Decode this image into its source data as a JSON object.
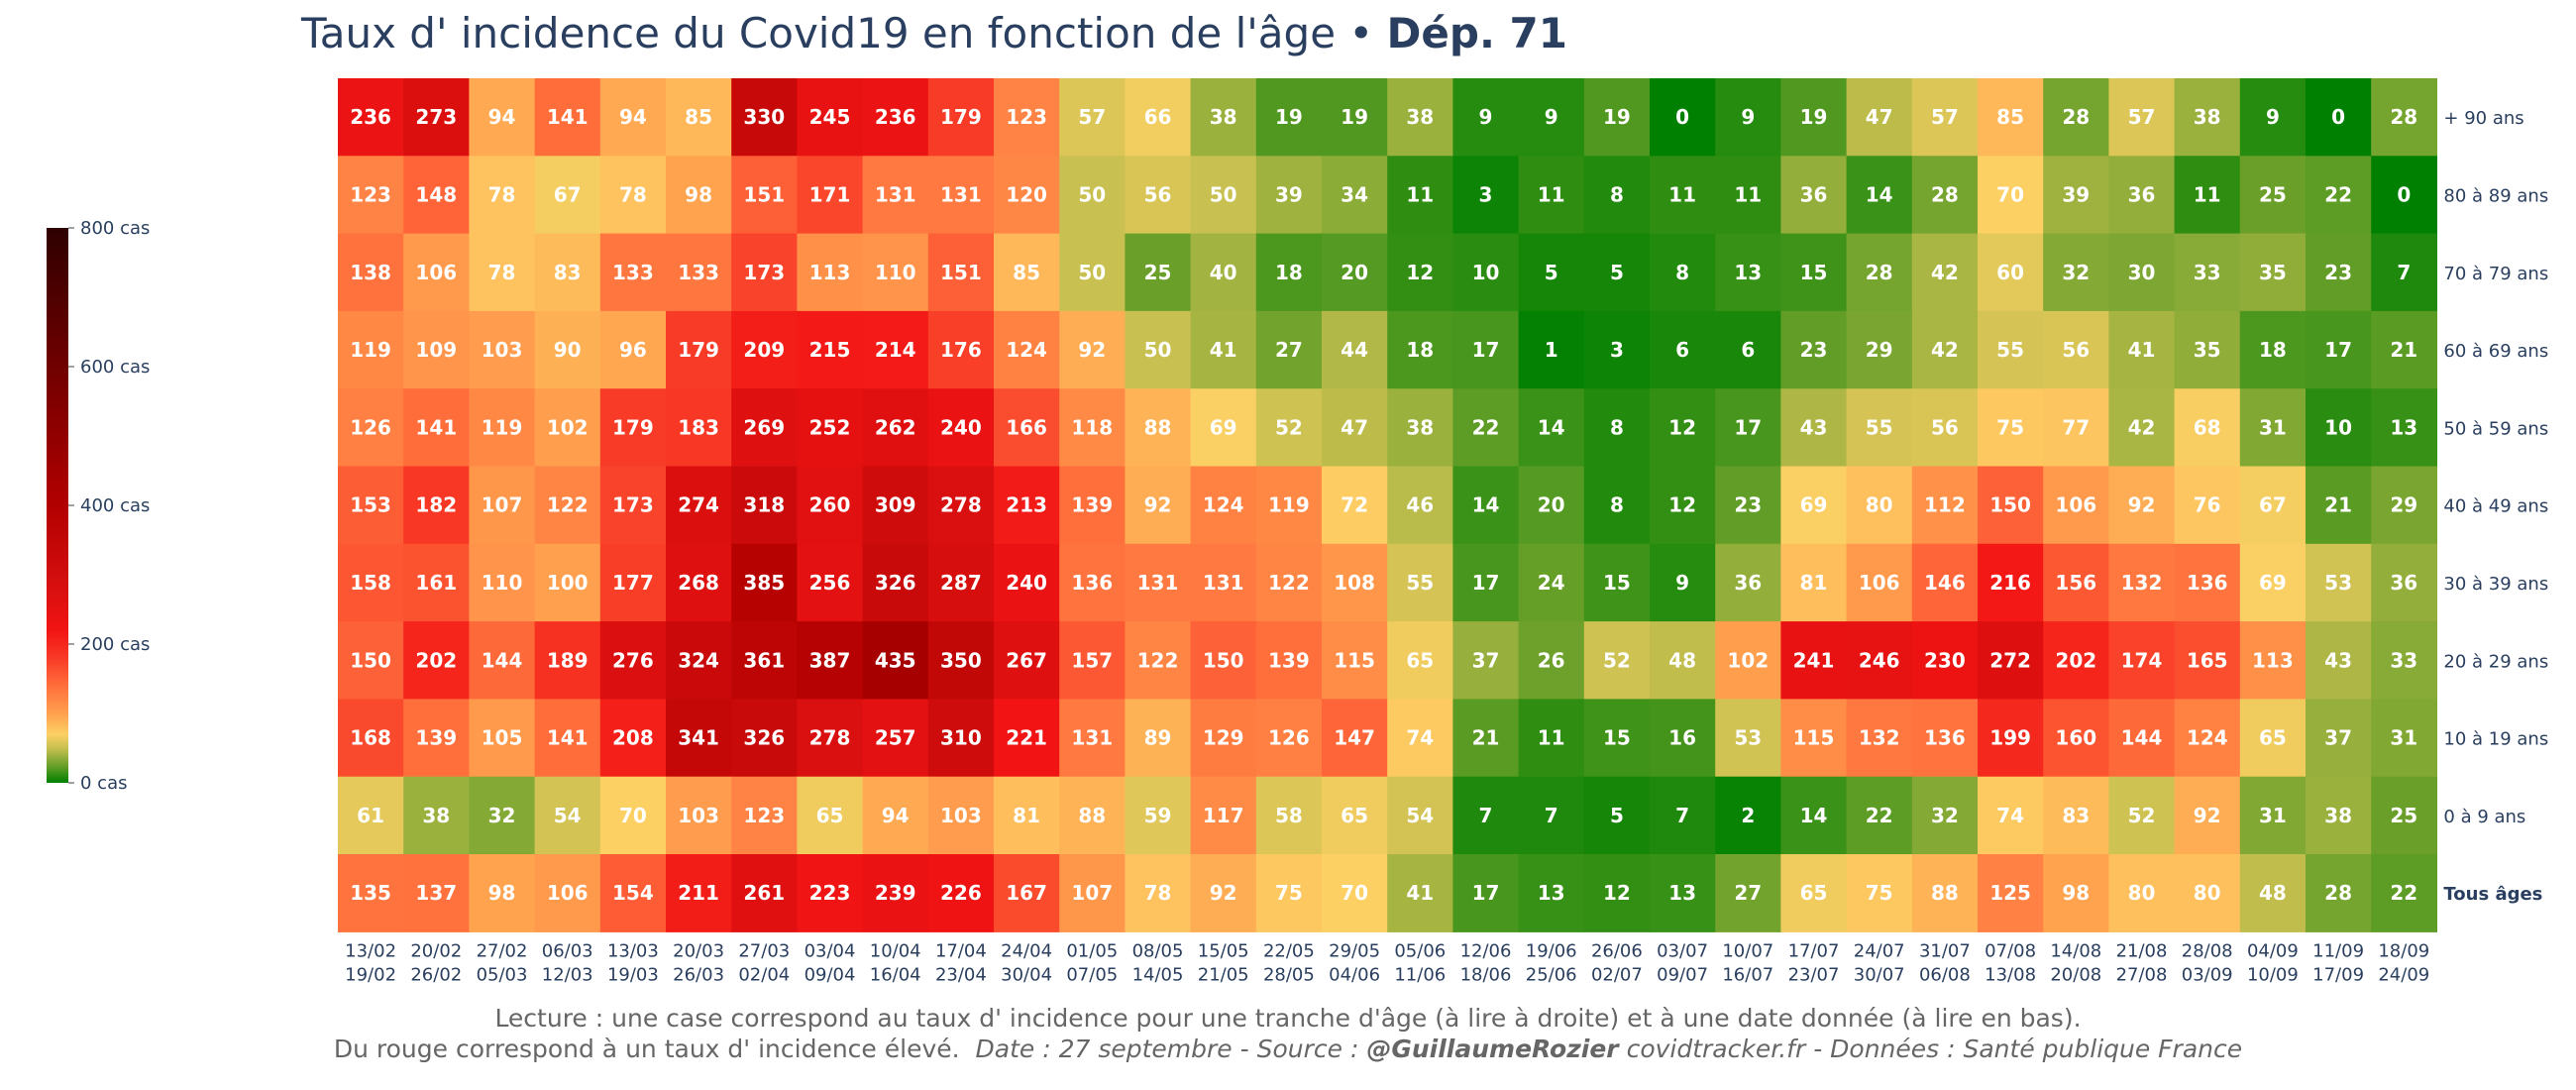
{
  "chart_data": {
    "type": "heatmap",
    "title": "Taux d' incidence du Covid19 en fonction de l'âge",
    "title_separator": " • ",
    "title_bold": "Dép. 71",
    "rows": [
      "+ 90 ans",
      "80 à 89 ans",
      "70 à 79 ans",
      "60 à 69 ans",
      "50 à 59 ans",
      "40 à 49 ans",
      "30 à 39 ans",
      "20 à 29 ans",
      "10 à 19 ans",
      "0 à 9 ans",
      "Tous âges"
    ],
    "columns": [
      [
        "13/02",
        "19/02"
      ],
      [
        "20/02",
        "26/02"
      ],
      [
        "27/02",
        "05/03"
      ],
      [
        "06/03",
        "12/03"
      ],
      [
        "13/03",
        "19/03"
      ],
      [
        "20/03",
        "26/03"
      ],
      [
        "27/03",
        "02/04"
      ],
      [
        "03/04",
        "09/04"
      ],
      [
        "10/04",
        "16/04"
      ],
      [
        "17/04",
        "23/04"
      ],
      [
        "24/04",
        "30/04"
      ],
      [
        "01/05",
        "07/05"
      ],
      [
        "08/05",
        "14/05"
      ],
      [
        "15/05",
        "21/05"
      ],
      [
        "22/05",
        "28/05"
      ],
      [
        "29/05",
        "04/06"
      ],
      [
        "05/06",
        "11/06"
      ],
      [
        "12/06",
        "18/06"
      ],
      [
        "19/06",
        "25/06"
      ],
      [
        "26/06",
        "02/07"
      ],
      [
        "03/07",
        "09/07"
      ],
      [
        "10/07",
        "16/07"
      ],
      [
        "17/07",
        "23/07"
      ],
      [
        "24/07",
        "30/07"
      ],
      [
        "31/07",
        "06/08"
      ],
      [
        "07/08",
        "13/08"
      ],
      [
        "14/08",
        "20/08"
      ],
      [
        "21/08",
        "27/08"
      ],
      [
        "28/08",
        "03/09"
      ],
      [
        "04/09",
        "10/09"
      ],
      [
        "11/09",
        "17/09"
      ],
      [
        "18/09",
        "24/09"
      ]
    ],
    "values": [
      [
        236,
        273,
        94,
        141,
        94,
        85,
        330,
        245,
        236,
        179,
        123,
        57,
        66,
        38,
        19,
        19,
        38,
        9,
        9,
        19,
        0,
        9,
        19,
        47,
        57,
        85,
        28,
        57,
        38,
        9,
        0,
        28
      ],
      [
        123,
        148,
        78,
        67,
        78,
        98,
        151,
        171,
        131,
        131,
        120,
        50,
        56,
        50,
        39,
        34,
        11,
        3,
        11,
        8,
        11,
        11,
        36,
        14,
        28,
        70,
        39,
        36,
        11,
        25,
        22,
        0
      ],
      [
        138,
        106,
        78,
        83,
        133,
        133,
        173,
        113,
        110,
        151,
        85,
        50,
        25,
        40,
        18,
        20,
        12,
        10,
        5,
        5,
        8,
        13,
        15,
        28,
        42,
        60,
        32,
        30,
        33,
        35,
        23,
        7
      ],
      [
        119,
        109,
        103,
        90,
        96,
        179,
        209,
        215,
        214,
        176,
        124,
        92,
        50,
        41,
        27,
        44,
        18,
        17,
        1,
        3,
        6,
        6,
        23,
        29,
        42,
        55,
        56,
        41,
        35,
        18,
        17,
        21
      ],
      [
        126,
        141,
        119,
        102,
        179,
        183,
        269,
        252,
        262,
        240,
        166,
        118,
        88,
        69,
        52,
        47,
        38,
        22,
        14,
        8,
        12,
        17,
        43,
        55,
        56,
        75,
        77,
        42,
        68,
        31,
        10,
        13
      ],
      [
        153,
        182,
        107,
        122,
        173,
        274,
        318,
        260,
        309,
        278,
        213,
        139,
        92,
        124,
        119,
        72,
        46,
        14,
        20,
        8,
        12,
        23,
        69,
        80,
        112,
        150,
        106,
        92,
        76,
        67,
        21,
        29
      ],
      [
        158,
        161,
        110,
        100,
        177,
        268,
        385,
        256,
        326,
        287,
        240,
        136,
        131,
        131,
        122,
        108,
        55,
        17,
        24,
        15,
        9,
        36,
        81,
        106,
        146,
        216,
        156,
        132,
        136,
        69,
        53,
        36
      ],
      [
        150,
        202,
        144,
        189,
        276,
        324,
        361,
        387,
        435,
        350,
        267,
        157,
        122,
        150,
        139,
        115,
        65,
        37,
        26,
        52,
        48,
        102,
        241,
        246,
        230,
        272,
        202,
        174,
        165,
        113,
        43,
        33
      ],
      [
        168,
        139,
        105,
        141,
        208,
        341,
        326,
        278,
        257,
        310,
        221,
        131,
        89,
        129,
        126,
        147,
        74,
        21,
        11,
        15,
        16,
        53,
        115,
        132,
        136,
        199,
        160,
        144,
        124,
        65,
        37,
        31
      ],
      [
        61,
        38,
        32,
        54,
        70,
        103,
        123,
        65,
        94,
        103,
        81,
        88,
        59,
        117,
        58,
        65,
        54,
        7,
        7,
        5,
        7,
        2,
        14,
        22,
        32,
        74,
        83,
        52,
        92,
        31,
        38,
        25
      ],
      [
        135,
        137,
        98,
        106,
        154,
        211,
        261,
        223,
        239,
        226,
        167,
        107,
        78,
        92,
        75,
        70,
        41,
        17,
        13,
        12,
        13,
        27,
        65,
        75,
        88,
        125,
        98,
        80,
        80,
        48,
        28,
        22
      ]
    ],
    "zrange": [
      0,
      800
    ],
    "colorbar": {
      "ticks": [
        0,
        200,
        400,
        600,
        800
      ],
      "tick_labels": [
        "0 cas",
        "200 cas",
        "400 cas",
        "600 cas",
        "800 cas"
      ],
      "stops": [
        {
          "value": 0,
          "color": "#008000"
        },
        {
          "value": 25,
          "color": "#6aa02a"
        },
        {
          "value": 50,
          "color": "#c8c050"
        },
        {
          "value": 70,
          "color": "#fdd064"
        },
        {
          "value": 100,
          "color": "#ffa04e"
        },
        {
          "value": 140,
          "color": "#ff6e3c"
        },
        {
          "value": 180,
          "color": "#f83a26"
        },
        {
          "value": 220,
          "color": "#f21414"
        },
        {
          "value": 300,
          "color": "#d10d0d"
        },
        {
          "value": 400,
          "color": "#b20000"
        },
        {
          "value": 600,
          "color": "#700000"
        },
        {
          "value": 800,
          "color": "#2e0000"
        }
      ]
    },
    "bold_row": "Tous âges"
  },
  "footer": {
    "line1": "Lecture : une case correspond au taux d' incidence pour une tranche d'âge (à lire à droite) et à une date donnée (à lire en bas).",
    "line2_start": "Du rouge correspond à un taux d' incidence élevé.",
    "line2_date_source": "Date : 27 septembre - Source :",
    "line2_author": "@GuillaumeRozier",
    "line2_end": "covidtracker.fr - Données : Santé publique France"
  },
  "colors": {
    "title": "#2a3f5f",
    "text": "#2a3f5f",
    "footer": "#666666"
  }
}
